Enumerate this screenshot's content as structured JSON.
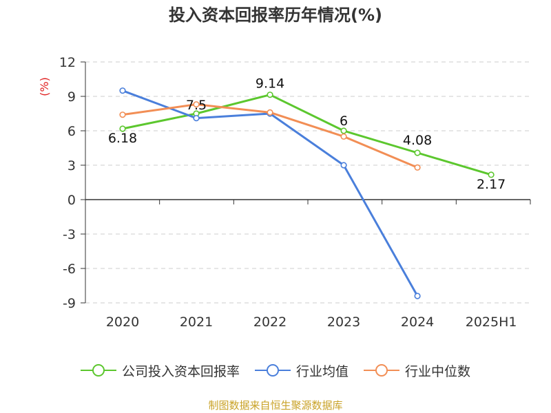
{
  "chart_data": {
    "type": "line",
    "title": "投入资本回报率历年情况(%)",
    "ylabel": "(%)",
    "categories": [
      "2020",
      "2021",
      "2022",
      "2023",
      "2024",
      "2025H1"
    ],
    "ylim": [
      -9,
      12
    ],
    "yticks": [
      12,
      9,
      6,
      3,
      0,
      -3,
      -6,
      -9
    ],
    "grid": true,
    "legend_position": "bottom",
    "series": [
      {
        "name": "公司投入资本回报率",
        "color": "#5cc72e",
        "values": [
          6.18,
          7.5,
          9.14,
          6,
          4.08,
          2.17
        ],
        "labels": [
          "6.18",
          "7.5",
          "9.14",
          "6",
          "4.08",
          "2.17"
        ]
      },
      {
        "name": "行业均值",
        "color": "#4a7fdb",
        "values": [
          9.5,
          7.1,
          7.5,
          3.0,
          -8.4,
          null
        ]
      },
      {
        "name": "行业中位数",
        "color": "#f28e55",
        "values": [
          7.4,
          8.3,
          7.6,
          5.5,
          2.8,
          null
        ]
      }
    ]
  },
  "source_note": "制图数据来自恒生聚源数据库",
  "colors": {
    "source_note": "#c9a227",
    "ylabel": "#e02020",
    "axis": "#333333",
    "grid": "#cccccc"
  }
}
